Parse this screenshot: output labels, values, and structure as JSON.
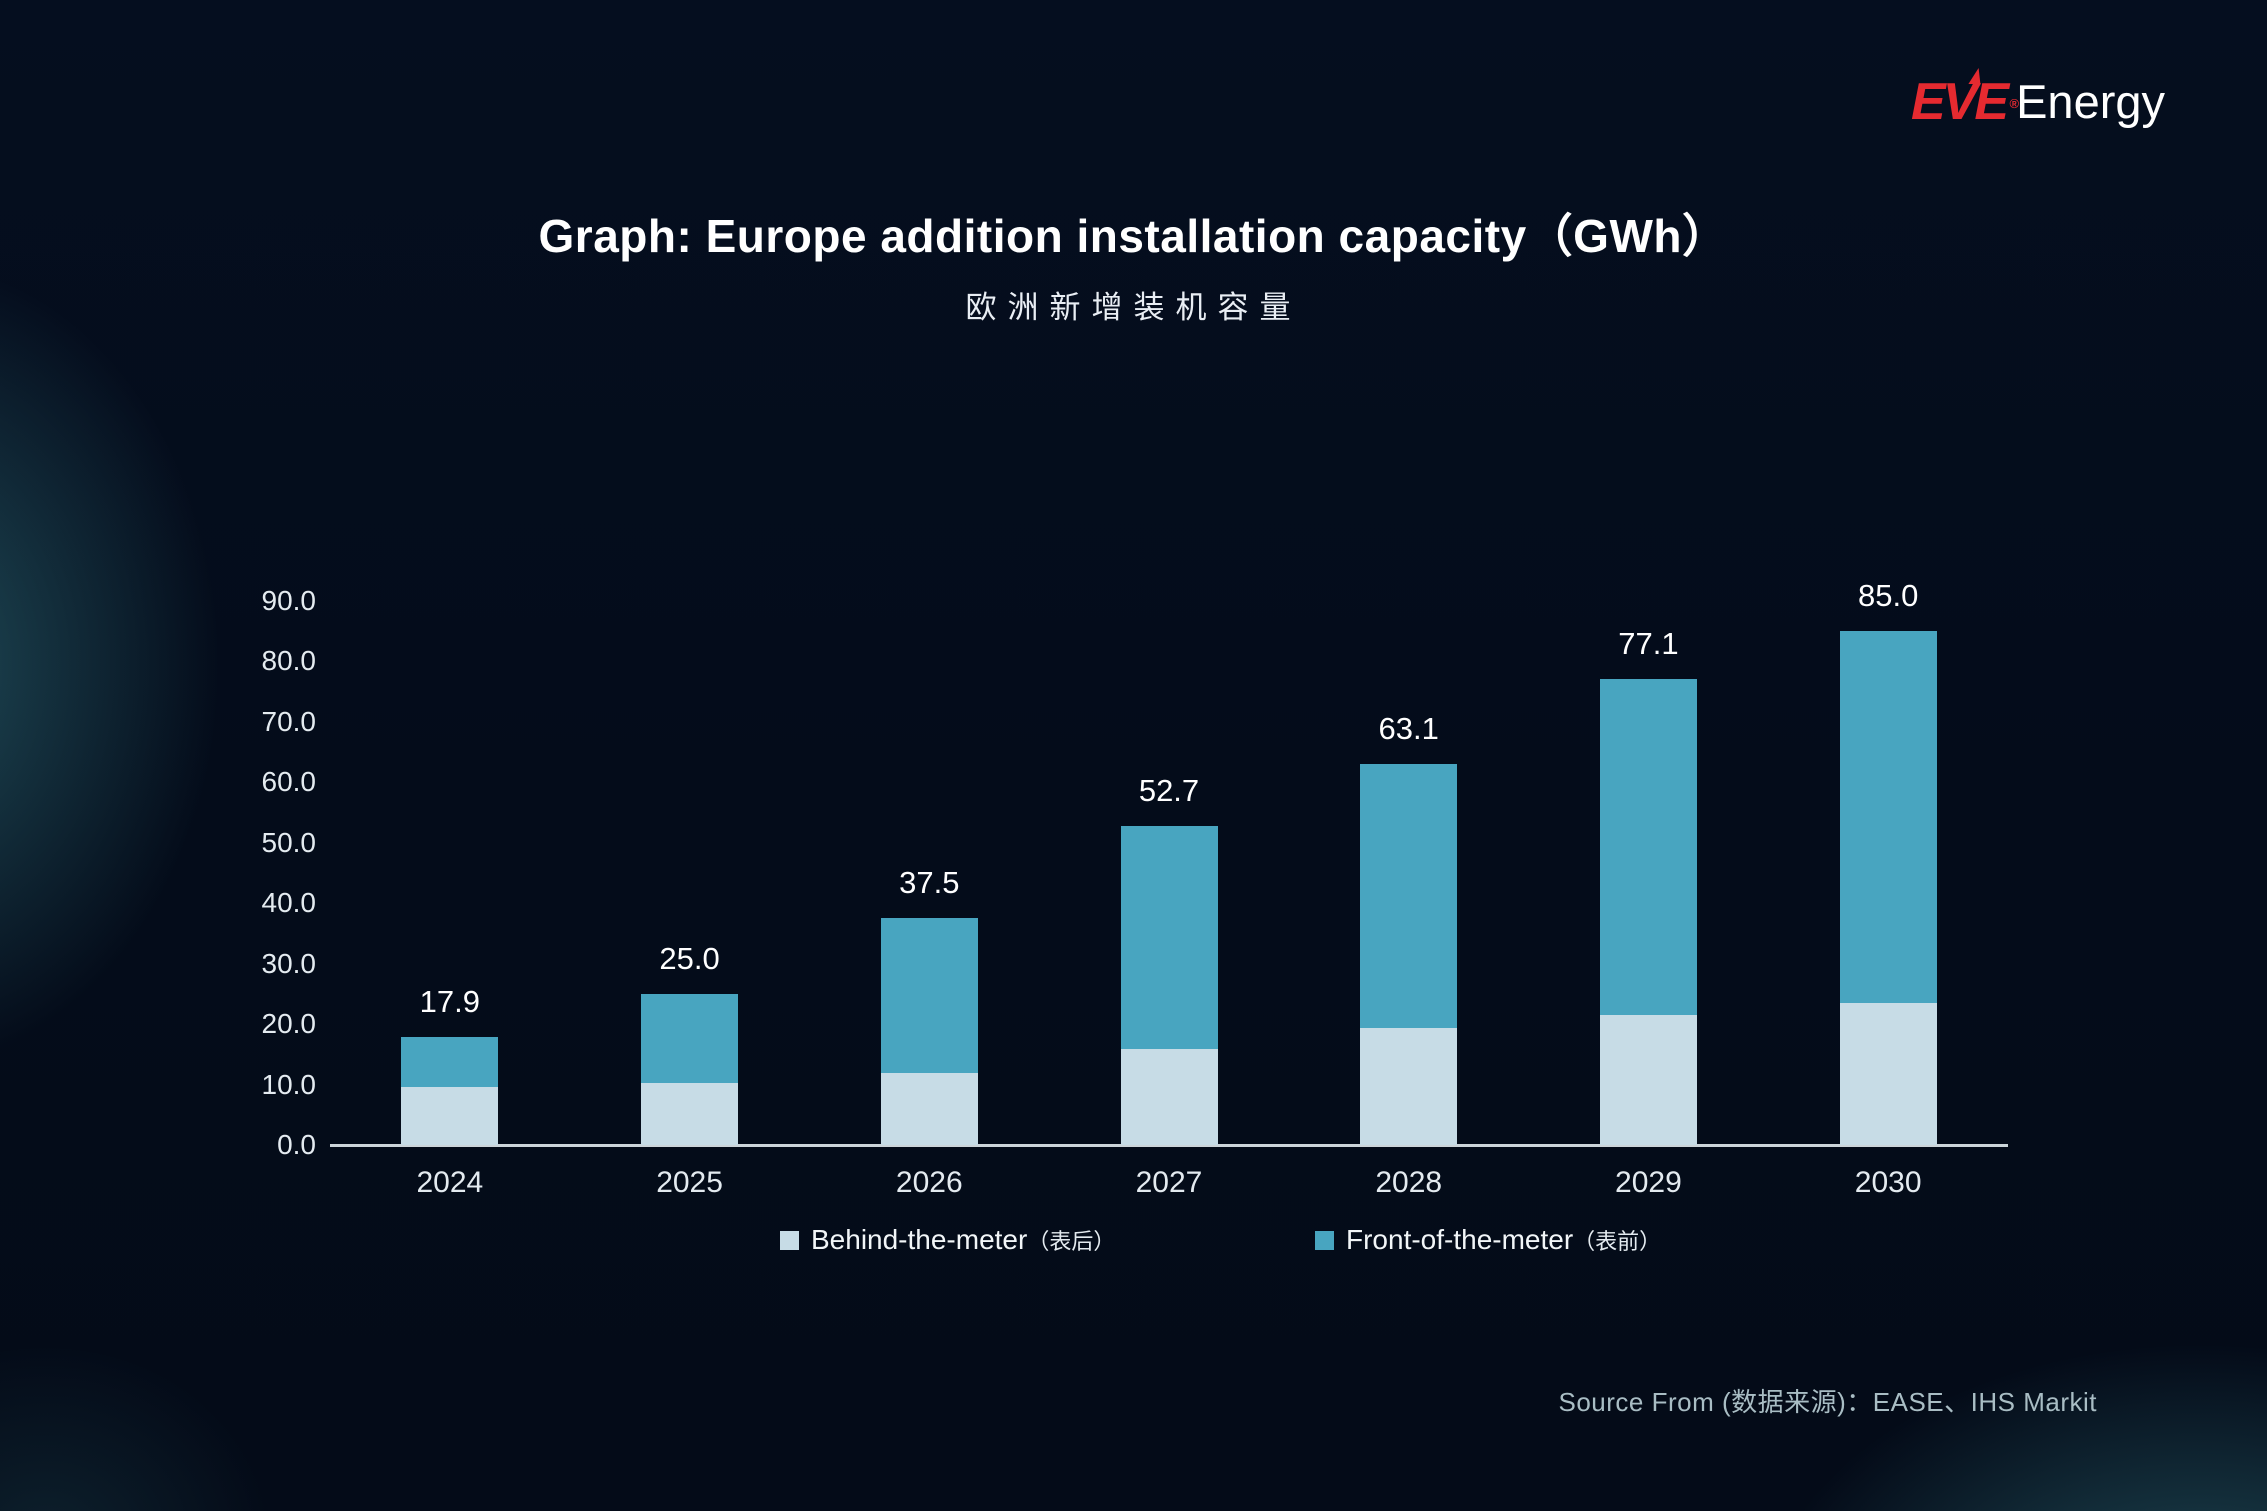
{
  "logo": {
    "brand": "EVE",
    "suffix": "Energy",
    "red": "#e52a30"
  },
  "title": "Graph: Europe addition installation capacity（GWh）",
  "subtitle": "欧洲新增装机容量",
  "source": "Source From (数据来源)：EASE、IHS Markit",
  "legend": {
    "items": [
      {
        "label": "Behind-the-meter",
        "zh": "（表后）",
        "color_key": "behind"
      },
      {
        "label": "Front-of-the-meter",
        "zh": "（表前）",
        "color_key": "front"
      }
    ]
  },
  "colors": {
    "behind": "#c7dce6",
    "front": "#48a5c0",
    "background": "#040b18",
    "glow": "#3e919b",
    "axis": "#ccd5da",
    "text": "#ffffff",
    "tick_text": "#e4ebf0",
    "source_text": "#a9bdc4"
  },
  "chart_data": {
    "type": "bar",
    "stacked": true,
    "title": "Graph: Europe addition installation capacity（GWh）",
    "subtitle": "欧洲新增装机容量",
    "categories": [
      "2024",
      "2025",
      "2026",
      "2027",
      "2028",
      "2029",
      "2030"
    ],
    "series": [
      {
        "name": "Behind-the-meter（表后）",
        "color_key": "behind",
        "values": [
          9.6,
          10.3,
          11.9,
          15.8,
          19.4,
          21.5,
          23.5
        ]
      },
      {
        "name": "Front-of-the-meter（表前）",
        "color_key": "front",
        "values": [
          8.3,
          14.7,
          25.6,
          36.9,
          43.7,
          55.6,
          61.5
        ]
      }
    ],
    "totals": [
      17.9,
      25.0,
      37.5,
      52.7,
      63.1,
      77.1,
      85.0
    ],
    "total_labels": [
      "17.9",
      "25.0",
      "37.5",
      "52.7",
      "63.1",
      "77.1",
      "85.0"
    ],
    "xlabel": "",
    "ylabel": "",
    "ylim": [
      0,
      90
    ],
    "ytick_step": 10,
    "ytick_labels": [
      "0.0",
      "10.0",
      "20.0",
      "30.0",
      "40.0",
      "50.0",
      "60.0",
      "70.0",
      "80.0",
      "90.0"
    ],
    "grid": false,
    "legend_position": "bottom"
  }
}
